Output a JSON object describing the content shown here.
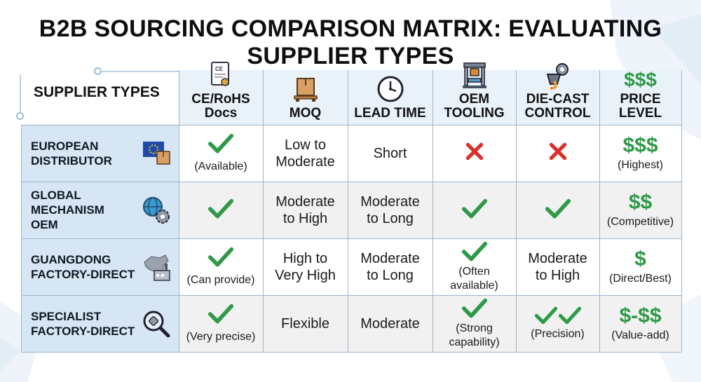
{
  "title": "B2B SOURCING COMPARISON MATRIX: EVALUATING SUPPLIER TYPES",
  "supplier_header": "SUPPLIER TYPES",
  "columns": [
    {
      "label_line1": "CE/RoHS",
      "label_line2": "Docs",
      "icon": "certificate-icon"
    },
    {
      "label_line1": "MOQ",
      "label_line2": "",
      "icon": "pallet-box-icon"
    },
    {
      "label_line1": "LEAD TIME",
      "label_line2": "",
      "icon": "clock-icon"
    },
    {
      "label_line1": "OEM",
      "label_line2": "TOOLING",
      "icon": "press-machine-icon"
    },
    {
      "label_line1": "DIE-CAST",
      "label_line2": "CONTROL",
      "icon": "gear-ladle-icon"
    },
    {
      "label_line1": "PRICE",
      "label_line2": "LEVEL",
      "icon": "dollar-signs-icon",
      "icon_text": "$$$"
    }
  ],
  "rows": [
    {
      "label": [
        "EUROPEAN",
        "DISTRIBUTOR"
      ],
      "icon": "eu-flag-box-icon",
      "ce": {
        "mark": "check",
        "note": "(Available)"
      },
      "moq": [
        "Low to",
        "Moderate"
      ],
      "lead": [
        "Short"
      ],
      "oem": {
        "mark": "cross",
        "note": ""
      },
      "die": {
        "mark": "cross",
        "text": [],
        "note": ""
      },
      "price": {
        "symbol": "$$$",
        "note": "(Highest)"
      }
    },
    {
      "label": [
        "GLOBAL",
        "MECHANISM",
        "OEM"
      ],
      "icon": "globe-gear-icon",
      "ce": {
        "mark": "check",
        "note": ""
      },
      "moq": [
        "Moderate",
        "to High"
      ],
      "lead": [
        "Moderate",
        "to Long"
      ],
      "oem": {
        "mark": "check",
        "note": ""
      },
      "die": {
        "mark": "check",
        "text": [],
        "note": ""
      },
      "price": {
        "symbol": "$$",
        "note": "(Competitive)"
      }
    },
    {
      "label": [
        "GUANGDONG",
        "FACTORY-DIRECT"
      ],
      "icon": "china-map-factory-icon",
      "ce": {
        "mark": "check",
        "note": "(Can provide)"
      },
      "moq": [
        "High to",
        "Very High"
      ],
      "lead": [
        "Moderate",
        "to Long"
      ],
      "oem": {
        "mark": "check",
        "note": "(Often available)",
        "note_lines": [
          "(Often",
          "available)"
        ]
      },
      "die": {
        "mark": "",
        "text": [
          "Moderate",
          "to High"
        ],
        "note": ""
      },
      "price": {
        "symbol": "$",
        "note": "(Direct/Best)"
      }
    },
    {
      "label": [
        "SPECIALIST",
        "FACTORY-DIRECT"
      ],
      "icon": "magnifier-part-icon",
      "ce": {
        "mark": "check",
        "note": "(Very precise)"
      },
      "moq": [
        "Flexible"
      ],
      "lead": [
        "Moderate"
      ],
      "oem": {
        "mark": "check",
        "note": "(Strong capability)",
        "note_lines": [
          "(Strong",
          "capability)"
        ]
      },
      "die": {
        "mark": "double-check",
        "text": [],
        "note": "(Precision)"
      },
      "price": {
        "symbol": "$-$$",
        "note": "(Value-add)"
      }
    }
  ],
  "colors": {
    "check": "#2e9a48",
    "cross": "#d8312a",
    "price": "#2e9a48",
    "header_band": "#eaf2f9",
    "label_column": "#d6e6f4",
    "grid_line": "#9eb6cb"
  }
}
